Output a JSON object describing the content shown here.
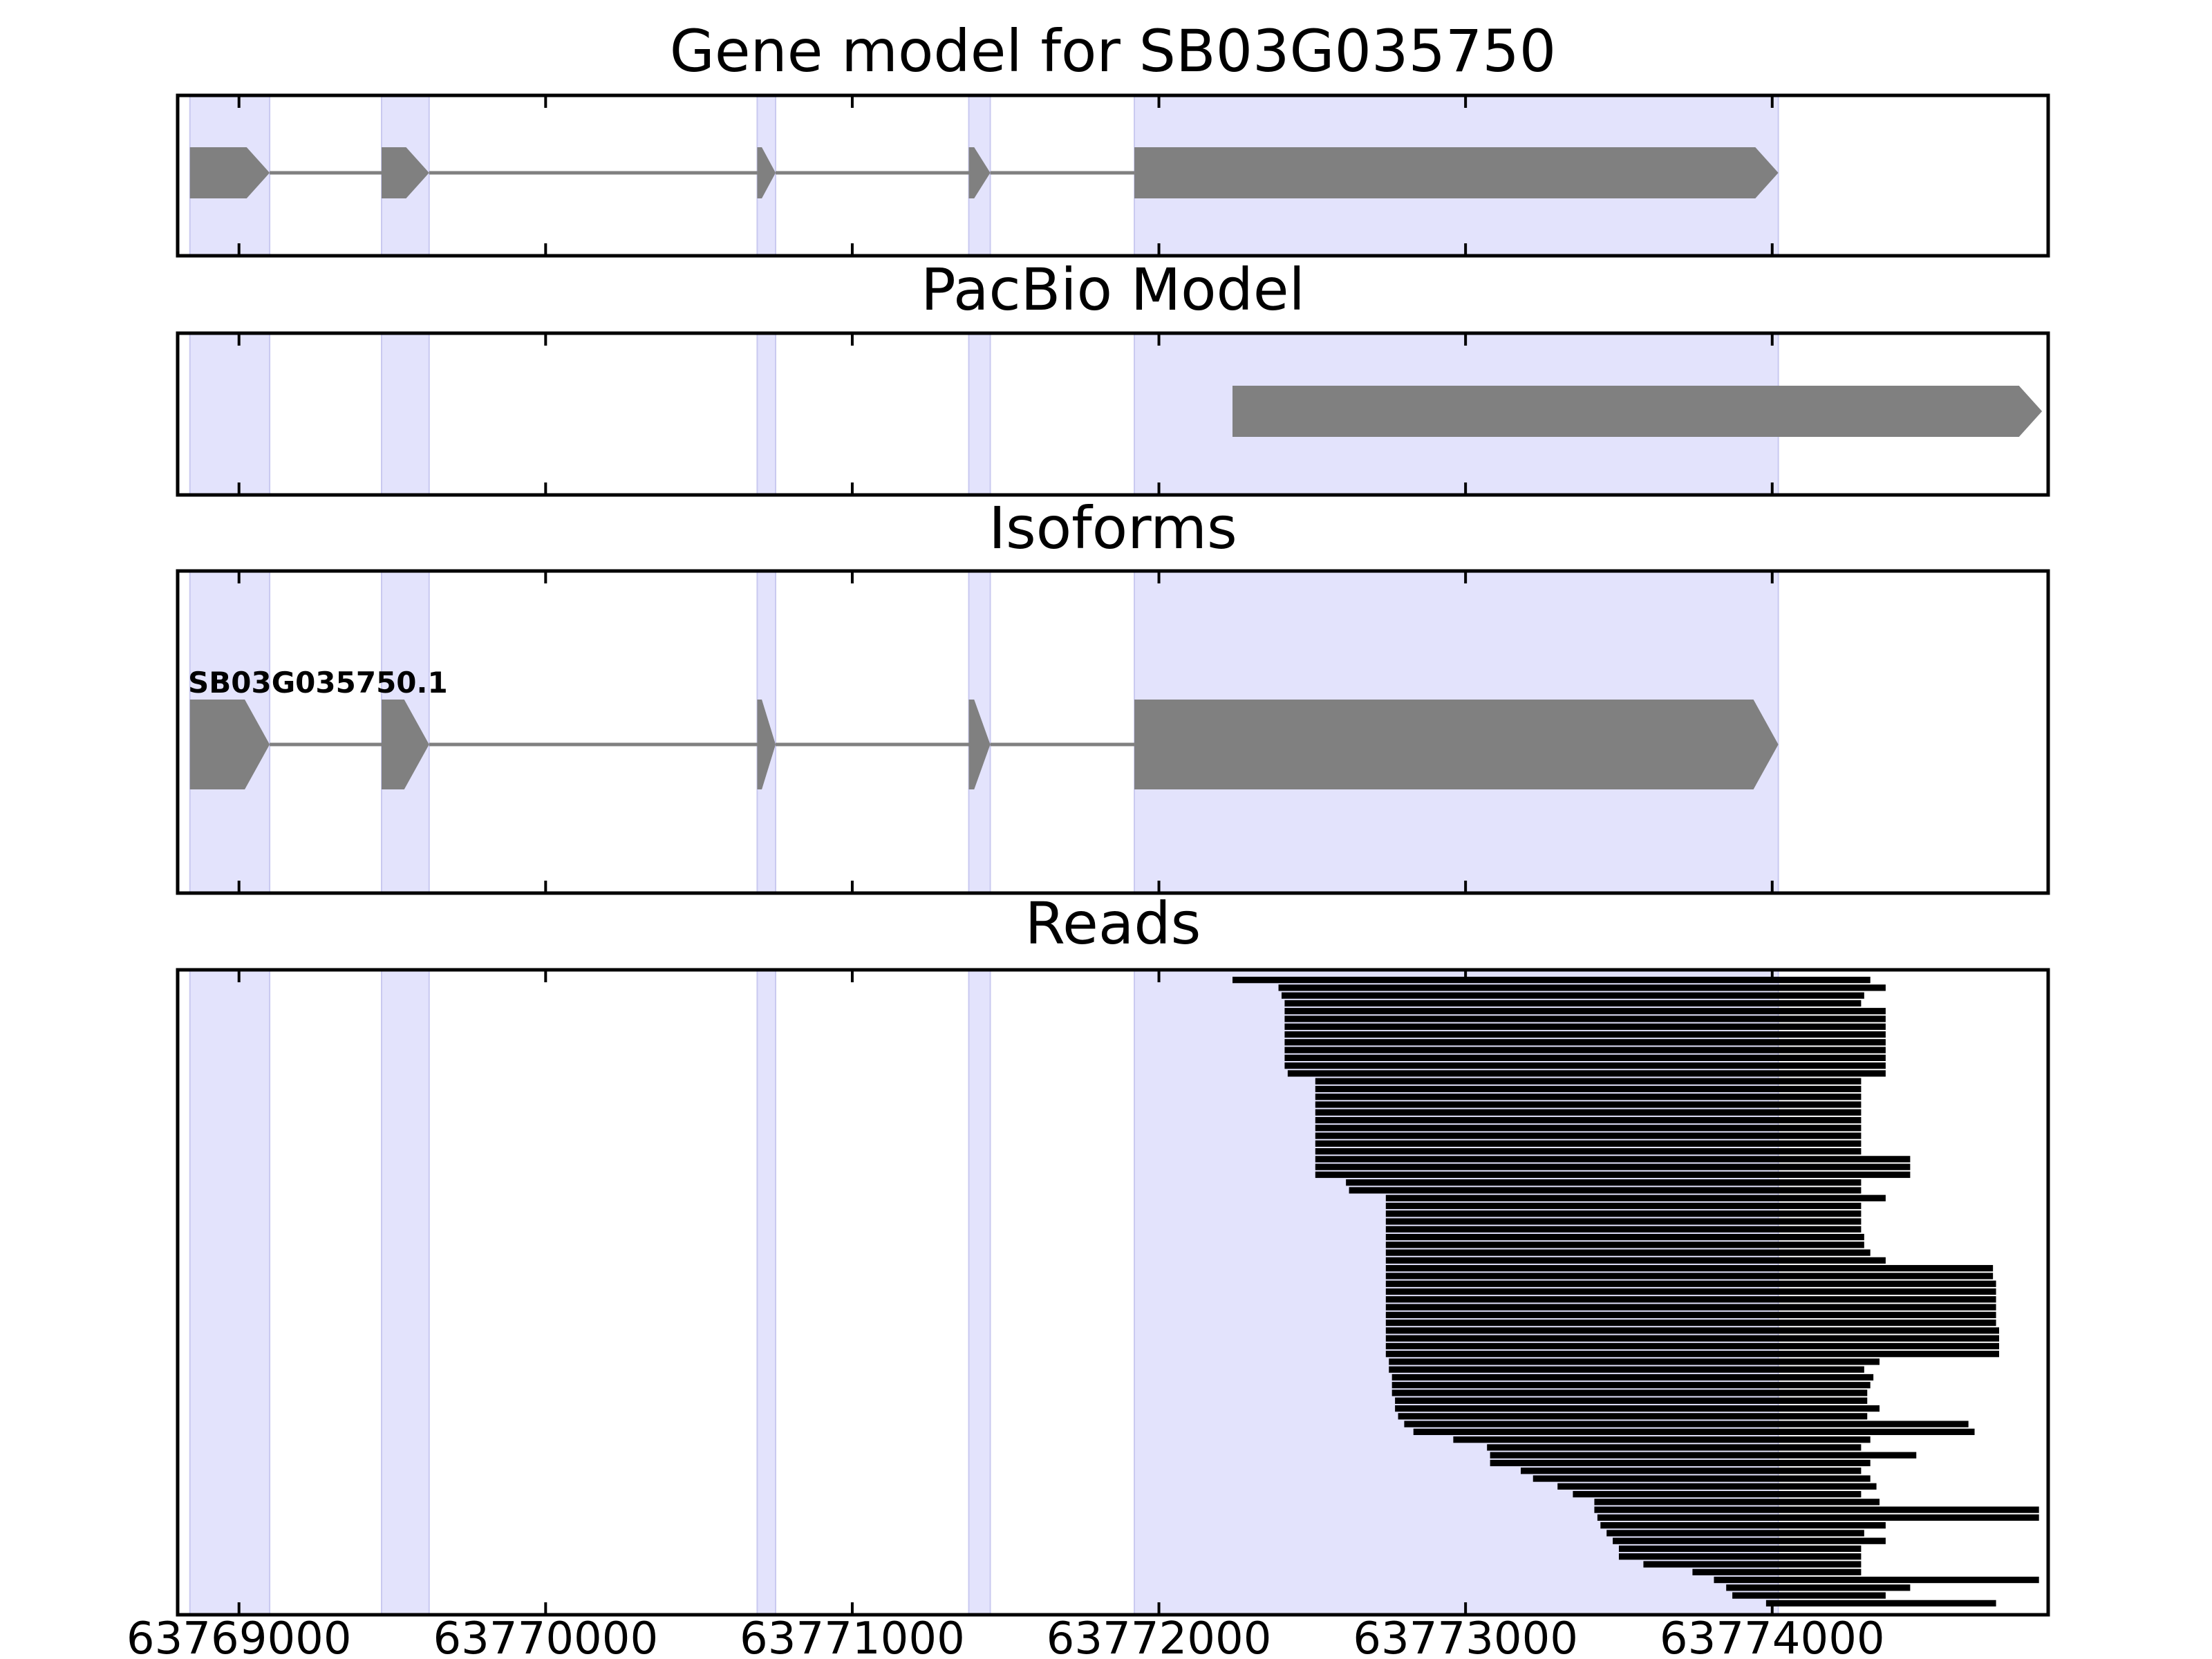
{
  "chart_data": {
    "type": "gene_track",
    "xlim": [
      63768800,
      63774900
    ],
    "xticks": [
      63769000,
      63770000,
      63771000,
      63772000,
      63773000,
      63774000
    ],
    "colors": {
      "highlight": "#e3e3fc",
      "highlight_edge": "#c9c9f0",
      "feature": "#808080",
      "read": "#000000",
      "frame": "#000000"
    },
    "panels": [
      {
        "id": "gene-model",
        "title": "Gene model for SB03G035750",
        "strand": "+",
        "exons": [
          [
            63768840,
            63769100
          ],
          [
            63769465,
            63769620
          ],
          [
            63770690,
            63770750
          ],
          [
            63771380,
            63771450
          ],
          [
            63771920,
            63774020
          ]
        ]
      },
      {
        "id": "pacbio-model",
        "title": "PacBio Model",
        "strand": "+",
        "exons": [
          [
            63772240,
            63774880
          ]
        ]
      },
      {
        "id": "isoforms",
        "title": "Isoforms",
        "strand": "+",
        "isoform_label": "SB03G035750.1",
        "exons": [
          [
            63768840,
            63769100
          ],
          [
            63769465,
            63769620
          ],
          [
            63770690,
            63770750
          ],
          [
            63771380,
            63771450
          ],
          [
            63771920,
            63774020
          ]
        ]
      },
      {
        "id": "reads",
        "title": "Reads",
        "reads": [
          [
            63772240,
            63774320
          ],
          [
            63772390,
            63774370
          ],
          [
            63772400,
            63774300
          ],
          [
            63772410,
            63774290
          ],
          [
            63772410,
            63774370
          ],
          [
            63772410,
            63774370
          ],
          [
            63772410,
            63774370
          ],
          [
            63772410,
            63774370
          ],
          [
            63772410,
            63774370
          ],
          [
            63772410,
            63774370
          ],
          [
            63772410,
            63774370
          ],
          [
            63772410,
            63774370
          ],
          [
            63772420,
            63774370
          ],
          [
            63772510,
            63774290
          ],
          [
            63772510,
            63774290
          ],
          [
            63772510,
            63774290
          ],
          [
            63772510,
            63774290
          ],
          [
            63772510,
            63774290
          ],
          [
            63772510,
            63774290
          ],
          [
            63772510,
            63774290
          ],
          [
            63772510,
            63774290
          ],
          [
            63772510,
            63774290
          ],
          [
            63772510,
            63774290
          ],
          [
            63772510,
            63774450
          ],
          [
            63772510,
            63774450
          ],
          [
            63772510,
            63774450
          ],
          [
            63772610,
            63774290
          ],
          [
            63772620,
            63774290
          ],
          [
            63772740,
            63774370
          ],
          [
            63772740,
            63774290
          ],
          [
            63772740,
            63774290
          ],
          [
            63772740,
            63774290
          ],
          [
            63772740,
            63774290
          ],
          [
            63772740,
            63774300
          ],
          [
            63772740,
            63774300
          ],
          [
            63772740,
            63774320
          ],
          [
            63772740,
            63774370
          ],
          [
            63772740,
            63774720
          ],
          [
            63772740,
            63774720
          ],
          [
            63772740,
            63774730
          ],
          [
            63772740,
            63774730
          ],
          [
            63772740,
            63774730
          ],
          [
            63772740,
            63774730
          ],
          [
            63772740,
            63774730
          ],
          [
            63772740,
            63774730
          ],
          [
            63772740,
            63774740
          ],
          [
            63772740,
            63774740
          ],
          [
            63772740,
            63774740
          ],
          [
            63772740,
            63774740
          ],
          [
            63772750,
            63774350
          ],
          [
            63772750,
            63774300
          ],
          [
            63772760,
            63774330
          ],
          [
            63772760,
            63774320
          ],
          [
            63772760,
            63774310
          ],
          [
            63772770,
            63774310
          ],
          [
            63772770,
            63774350
          ],
          [
            63772780,
            63774310
          ],
          [
            63772800,
            63774640
          ],
          [
            63772830,
            63774660
          ],
          [
            63772960,
            63774320
          ],
          [
            63773070,
            63774290
          ],
          [
            63773080,
            63774470
          ],
          [
            63773080,
            63774320
          ],
          [
            63773180,
            63774290
          ],
          [
            63773220,
            63774320
          ],
          [
            63773300,
            63774340
          ],
          [
            63773350,
            63774290
          ],
          [
            63773420,
            63774350
          ],
          [
            63773420,
            63774870
          ],
          [
            63773430,
            63774870
          ],
          [
            63773440,
            63774370
          ],
          [
            63773460,
            63774300
          ],
          [
            63773480,
            63774370
          ],
          [
            63773500,
            63774290
          ],
          [
            63773500,
            63774290
          ],
          [
            63773580,
            63774290
          ],
          [
            63773740,
            63774290
          ],
          [
            63773810,
            63774870
          ],
          [
            63773850,
            63774450
          ],
          [
            63773870,
            63774370
          ],
          [
            63773980,
            63774730
          ]
        ]
      }
    ]
  }
}
